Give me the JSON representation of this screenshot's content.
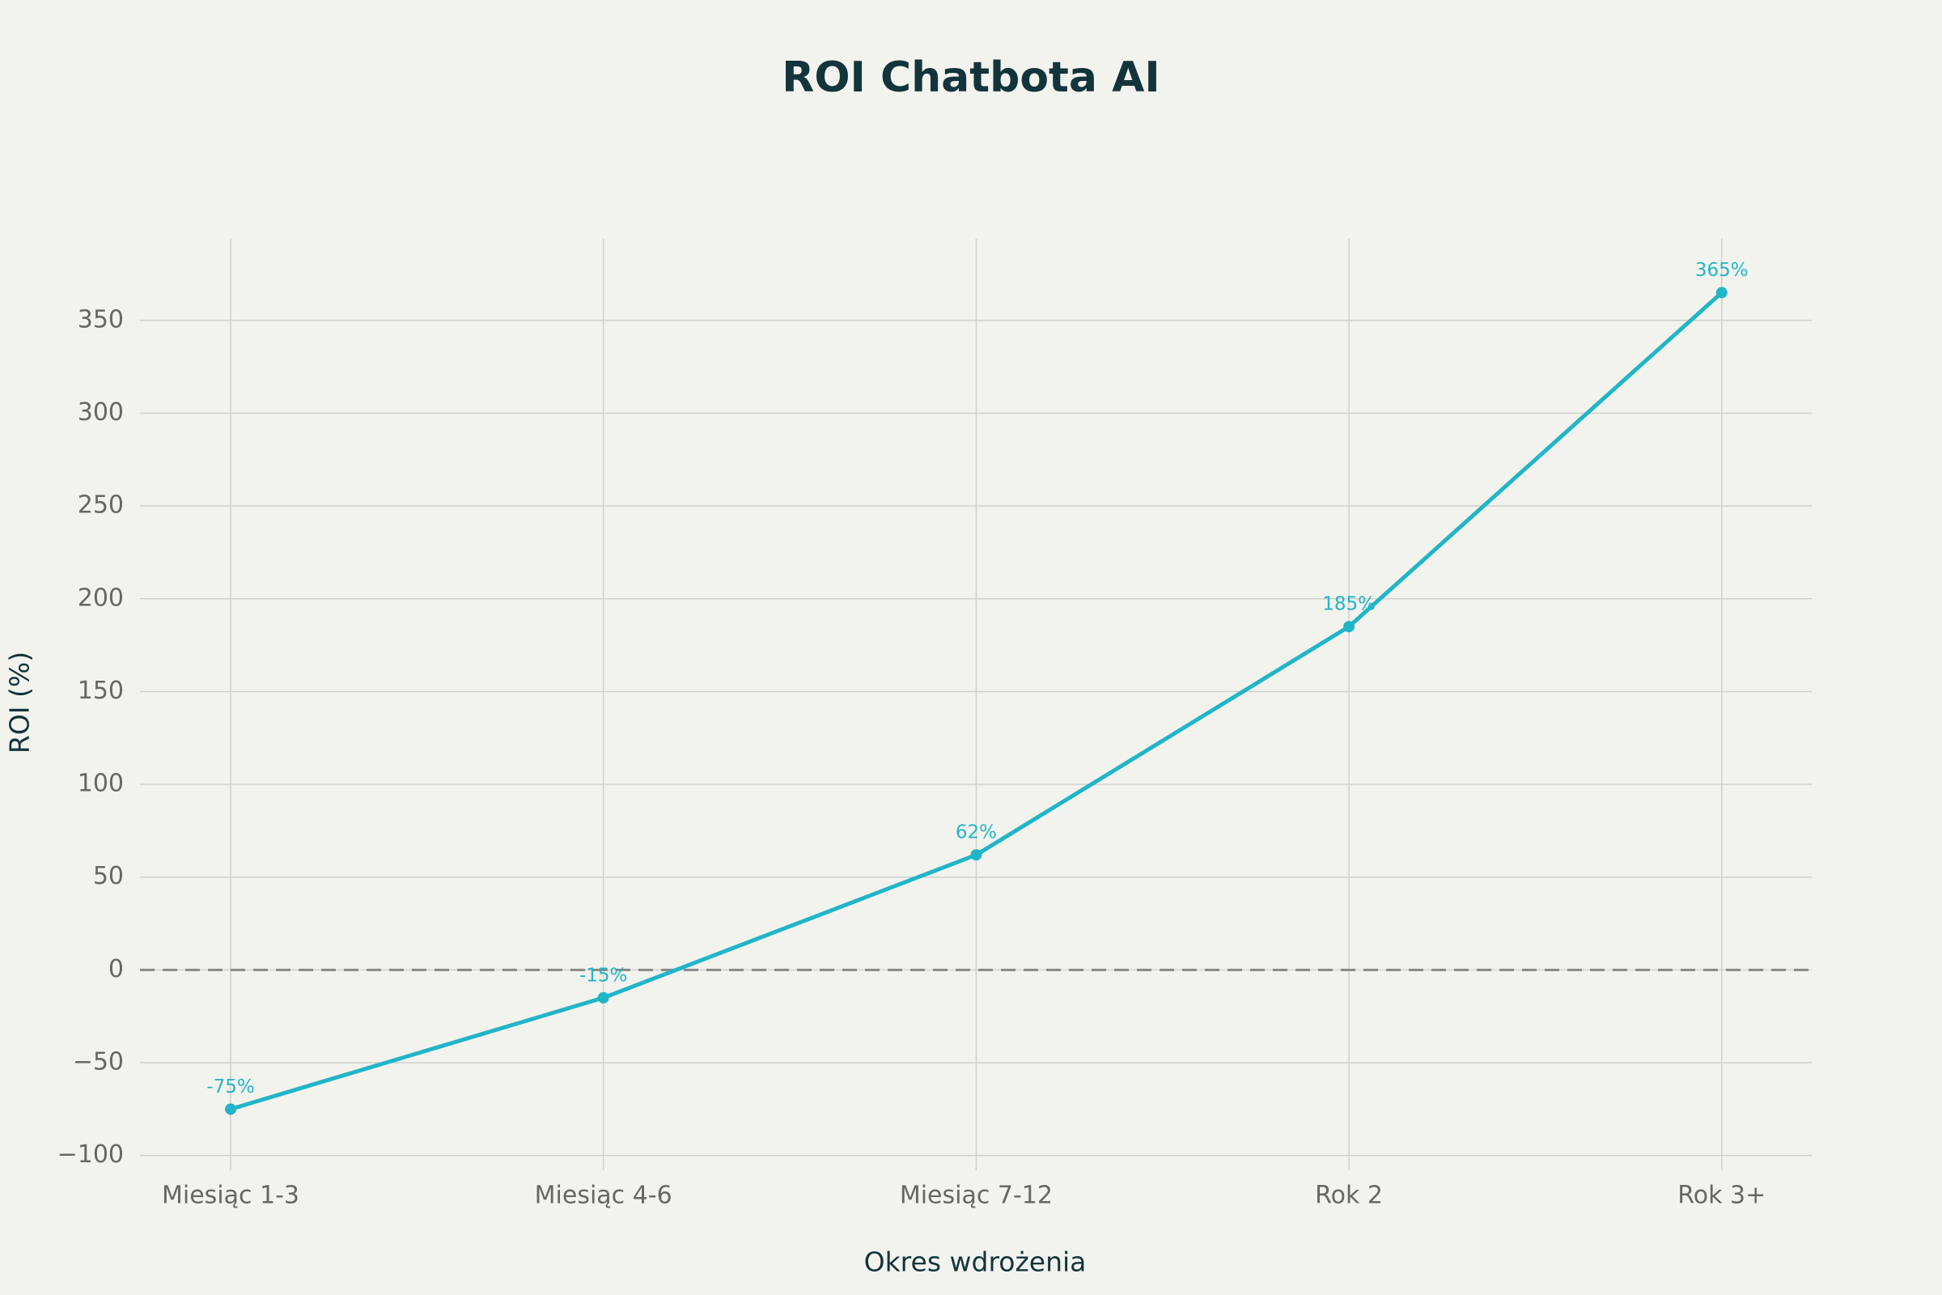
{
  "chart_data": {
    "type": "line",
    "title": "ROI Chatbota AI",
    "x_label": "Okres wdrożenia",
    "y_label": "ROI (%)",
    "categories": [
      "Miesiąc 1-3",
      "Miesiąc 4-6",
      "Miesiąc 7-12",
      "Rok 2",
      "Rok 3+"
    ],
    "series": [
      {
        "name": "ROI",
        "color": "#21b5c8",
        "values": [
          -75,
          -15,
          62,
          185,
          365
        ],
        "value_labels": [
          "-75%",
          "-15%",
          "62%",
          "185%",
          "365%"
        ]
      }
    ],
    "ylim": [
      -108,
      394
    ],
    "yticks": [
      {
        "value": -100,
        "label": "−100"
      },
      {
        "value": -50,
        "label": "−50"
      },
      0,
      50,
      100,
      150,
      200,
      250,
      300,
      350
    ],
    "grid": true,
    "zero_line": true
  }
}
